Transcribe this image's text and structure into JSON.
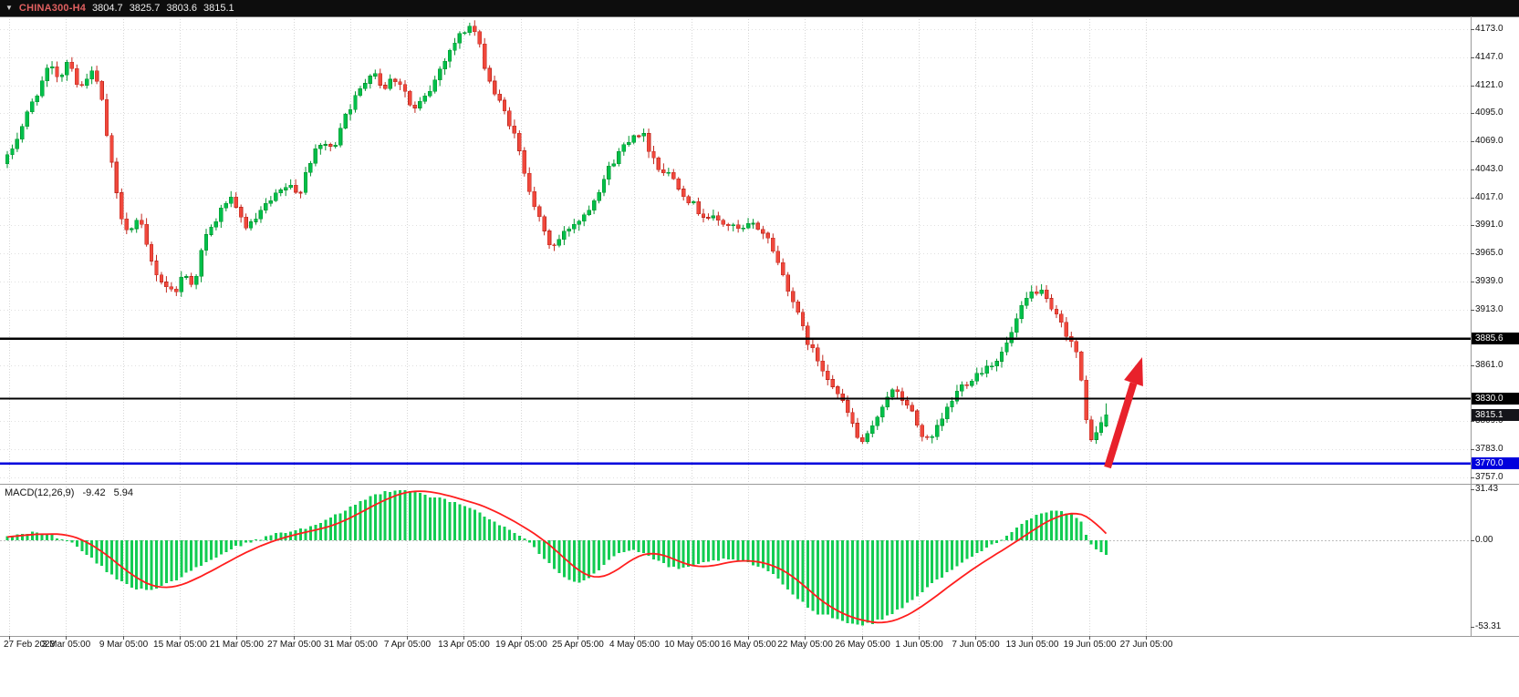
{
  "title_bar": {
    "symbol": "CHINA300-H4",
    "ohlc": [
      "3804.7",
      "3825.7",
      "3803.6",
      "3815.1"
    ]
  },
  "colors": {
    "up": "#00bf4a",
    "up_edge": "#00962f",
    "down": "#f0483c",
    "down_edge": "#c22a20",
    "macd_hist": "#12cc52",
    "signal_line": "#ff1e1e",
    "grid": "#d6d6d6",
    "grid_h": "#e0e0e0",
    "level_black": "#000000",
    "level_blue": "#0000dd",
    "arrow": "#e8212b",
    "axis_text": "#111111",
    "titlebar_bg": "#0d0d0d",
    "pane_border": "#9a9a9a"
  },
  "price_axis": {
    "ticks": [
      "4173.0",
      "4147.0",
      "4121.0",
      "4095.0",
      "4069.0",
      "4043.0",
      "4017.0",
      "3991.0",
      "3965.0",
      "3939.0",
      "3913.0",
      "3861.0",
      "3809.0",
      "3783.0",
      "3757.0"
    ]
  },
  "levels": [
    {
      "name": "resistance-line",
      "label": "3885.6",
      "price": 3885.6,
      "color": "#000000",
      "width": 2.5
    },
    {
      "name": "support-line",
      "label": "3830.0",
      "price": 3830.0,
      "color": "#000000",
      "width": 1.8
    },
    {
      "name": "blue-support-line",
      "label": "3770.0",
      "price": 3770.0,
      "color": "#0000dd",
      "width": 2.5
    }
  ],
  "current_price": {
    "label": "3815.1",
    "price": 3815.1,
    "label_bg": "#15151a"
  },
  "time_axis": {
    "labels": [
      "27 Feb 2023",
      "3 Mar 05:00",
      "9 Mar 05:00",
      "15 Mar 05:00",
      "21 Mar 05:00",
      "27 Mar 05:00",
      "31 Mar 05:00",
      "7 Apr 05:00",
      "13 Apr 05:00",
      "19 Apr 05:00",
      "25 Apr 05:00",
      "4 May 05:00",
      "10 May 05:00",
      "16 May 05:00",
      "22 May 05:00",
      "26 May 05:00",
      "1 Jun 05:00",
      "7 Jun 05:00",
      "13 Jun 05:00",
      "19 Jun 05:00",
      "27 Jun 05:00"
    ]
  },
  "macd_panel": {
    "label": "MACD(12,26,9)",
    "main_value": "-9.42",
    "signal_value": "5.94",
    "axis_max": "31.43",
    "axis_zero": "0.00",
    "axis_min": "-53.31"
  },
  "annotations": [
    {
      "type": "arrow",
      "name": "bullish-arrow",
      "direction": "up-right",
      "color": "#e8212b"
    }
  ],
  "chart_data": {
    "type": "candlestick",
    "title": "CHINA300-H4",
    "symbol": "CHINA300",
    "timeframe": "H4",
    "bars": 222,
    "ylim": [
      3751,
      4185
    ],
    "y_tick_step": 26,
    "price_levels": [
      3885.6,
      3830.0,
      3770.0
    ],
    "last_bar_ohlc": {
      "open": 3804.7,
      "high": 3825.7,
      "low": 3803.6,
      "close": 3815.1
    },
    "x_labels": [
      "27 Feb 2023",
      "3 Mar 05:00",
      "9 Mar 05:00",
      "15 Mar 05:00",
      "21 Mar 05:00",
      "27 Mar 05:00",
      "31 Mar 05:00",
      "7 Apr 05:00",
      "13 Apr 05:00",
      "19 Apr 05:00",
      "25 Apr 05:00",
      "4 May 05:00",
      "10 May 05:00",
      "16 May 05:00",
      "22 May 05:00",
      "26 May 05:00",
      "1 Jun 05:00",
      "7 Jun 05:00",
      "13 Jun 05:00",
      "19 Jun 05:00",
      "27 Jun 05:00"
    ],
    "price_path_anchors": [
      [
        0,
        4048
      ],
      [
        3,
        4078
      ],
      [
        6,
        4110
      ],
      [
        9,
        4138
      ],
      [
        11,
        4128
      ],
      [
        13,
        4148
      ],
      [
        15,
        4115
      ],
      [
        17,
        4135
      ],
      [
        19,
        4120
      ],
      [
        21,
        4060
      ],
      [
        23,
        4005
      ],
      [
        25,
        3985
      ],
      [
        27,
        3997
      ],
      [
        29,
        3962
      ],
      [
        31,
        3942
      ],
      [
        34,
        3928
      ],
      [
        36,
        3946
      ],
      [
        38,
        3936
      ],
      [
        40,
        3976
      ],
      [
        43,
        4000
      ],
      [
        45,
        4018
      ],
      [
        47,
        4000
      ],
      [
        49,
        3988
      ],
      [
        52,
        4006
      ],
      [
        55,
        4020
      ],
      [
        57,
        4028
      ],
      [
        59,
        4018
      ],
      [
        61,
        4048
      ],
      [
        64,
        4068
      ],
      [
        66,
        4060
      ],
      [
        68,
        4092
      ],
      [
        70,
        4105
      ],
      [
        72,
        4120
      ],
      [
        74,
        4138
      ],
      [
        76,
        4118
      ],
      [
        78,
        4128
      ],
      [
        80,
        4122
      ],
      [
        82,
        4096
      ],
      [
        84,
        4106
      ],
      [
        86,
        4120
      ],
      [
        88,
        4142
      ],
      [
        90,
        4158
      ],
      [
        92,
        4170
      ],
      [
        94,
        4178
      ],
      [
        96,
        4148
      ],
      [
        98,
        4118
      ],
      [
        100,
        4100
      ],
      [
        102,
        4082
      ],
      [
        104,
        4050
      ],
      [
        106,
        4018
      ],
      [
        108,
        3988
      ],
      [
        110,
        3970
      ],
      [
        112,
        3980
      ],
      [
        114,
        3992
      ],
      [
        116,
        3998
      ],
      [
        118,
        4012
      ],
      [
        120,
        4030
      ],
      [
        122,
        4048
      ],
      [
        124,
        4062
      ],
      [
        126,
        4075
      ],
      [
        128,
        4078
      ],
      [
        130,
        4058
      ],
      [
        132,
        4042
      ],
      [
        134,
        4038
      ],
      [
        136,
        4025
      ],
      [
        138,
        4012
      ],
      [
        140,
        4002
      ],
      [
        143,
        3996
      ],
      [
        146,
        3990
      ],
      [
        148,
        3985
      ],
      [
        150,
        3992
      ],
      [
        152,
        3988
      ],
      [
        154,
        3975
      ],
      [
        156,
        3950
      ],
      [
        158,
        3928
      ],
      [
        160,
        3900
      ],
      [
        162,
        3878
      ],
      [
        164,
        3862
      ],
      [
        166,
        3848
      ],
      [
        168,
        3830
      ],
      [
        170,
        3812
      ],
      [
        172,
        3788
      ],
      [
        174,
        3796
      ],
      [
        176,
        3820
      ],
      [
        178,
        3838
      ],
      [
        180,
        3832
      ],
      [
        182,
        3822
      ],
      [
        184,
        3800
      ],
      [
        186,
        3788
      ],
      [
        188,
        3806
      ],
      [
        190,
        3825
      ],
      [
        192,
        3840
      ],
      [
        194,
        3848
      ],
      [
        196,
        3855
      ],
      [
        198,
        3862
      ],
      [
        200,
        3868
      ],
      [
        202,
        3885
      ],
      [
        204,
        3908
      ],
      [
        206,
        3926
      ],
      [
        208,
        3932
      ],
      [
        210,
        3915
      ],
      [
        212,
        3902
      ],
      [
        214,
        3888
      ],
      [
        215,
        3878
      ],
      [
        216,
        3868
      ],
      [
        217,
        3820
      ],
      [
        218,
        3798
      ],
      [
        219,
        3792
      ],
      [
        220,
        3802
      ],
      [
        221,
        3815
      ]
    ],
    "sub_chart": {
      "type": "macd-histogram",
      "label": "MACD(12,26,9)",
      "main": -9.42,
      "signal": 5.94,
      "ylim": [
        -53.31,
        31.43
      ],
      "macd_anchors": [
        [
          0,
          2
        ],
        [
          3,
          4
        ],
        [
          6,
          5
        ],
        [
          9,
          3
        ],
        [
          12,
          0
        ],
        [
          14,
          -4
        ],
        [
          16,
          -9
        ],
        [
          18,
          -14
        ],
        [
          20,
          -19
        ],
        [
          22,
          -24
        ],
        [
          25,
          -29
        ],
        [
          28,
          -31
        ],
        [
          31,
          -28
        ],
        [
          34,
          -24
        ],
        [
          37,
          -19
        ],
        [
          40,
          -14
        ],
        [
          43,
          -9
        ],
        [
          46,
          -4
        ],
        [
          49,
          -1
        ],
        [
          52,
          2
        ],
        [
          55,
          5
        ],
        [
          58,
          6
        ],
        [
          61,
          8
        ],
        [
          64,
          12
        ],
        [
          67,
          17
        ],
        [
          70,
          22
        ],
        [
          73,
          27
        ],
        [
          76,
          30
        ],
        [
          79,
          31.5
        ],
        [
          82,
          30
        ],
        [
          85,
          27
        ],
        [
          88,
          25
        ],
        [
          91,
          22
        ],
        [
          94,
          19
        ],
        [
          97,
          13
        ],
        [
          100,
          8
        ],
        [
          103,
          3
        ],
        [
          105,
          -2
        ],
        [
          107,
          -8
        ],
        [
          109,
          -14
        ],
        [
          111,
          -20
        ],
        [
          113,
          -24
        ],
        [
          115,
          -26
        ],
        [
          117,
          -23
        ],
        [
          119,
          -18
        ],
        [
          121,
          -12
        ],
        [
          123,
          -8
        ],
        [
          125,
          -6
        ],
        [
          127,
          -7
        ],
        [
          129,
          -10
        ],
        [
          131,
          -13
        ],
        [
          133,
          -16
        ],
        [
          135,
          -18
        ],
        [
          137,
          -17
        ],
        [
          139,
          -15
        ],
        [
          141,
          -13
        ],
        [
          143,
          -12
        ],
        [
          145,
          -12
        ],
        [
          147,
          -13
        ],
        [
          149,
          -14
        ],
        [
          151,
          -16
        ],
        [
          153,
          -19
        ],
        [
          155,
          -24
        ],
        [
          157,
          -30
        ],
        [
          159,
          -36
        ],
        [
          161,
          -41
        ],
        [
          163,
          -45
        ],
        [
          165,
          -46
        ],
        [
          168,
          -50
        ],
        [
          171,
          -52
        ],
        [
          174,
          -51
        ],
        [
          177,
          -47
        ],
        [
          180,
          -41
        ],
        [
          183,
          -34
        ],
        [
          186,
          -27
        ],
        [
          189,
          -20
        ],
        [
          192,
          -14
        ],
        [
          195,
          -8
        ],
        [
          198,
          -3
        ],
        [
          200,
          1
        ],
        [
          203,
          8
        ],
        [
          206,
          14
        ],
        [
          209,
          17
        ],
        [
          212,
          18
        ],
        [
          214,
          16
        ],
        [
          216,
          11
        ],
        [
          217,
          4
        ],
        [
          218,
          -2
        ],
        [
          219,
          -5
        ],
        [
          220,
          -7.5
        ],
        [
          221,
          -9.42
        ]
      ]
    }
  }
}
